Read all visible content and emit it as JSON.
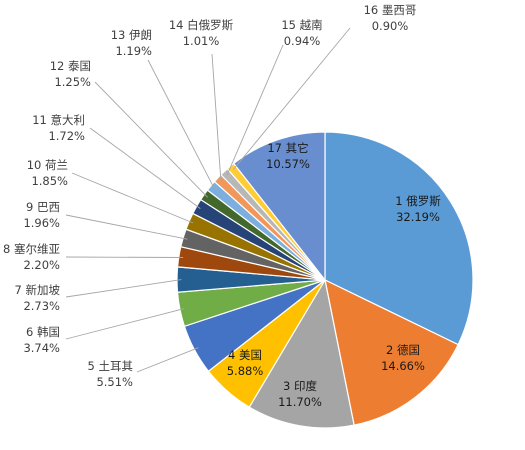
{
  "chart_data": {
    "type": "pie",
    "title": "",
    "slices": [
      {
        "rank": "1",
        "name": "俄罗斯",
        "value": 32.19,
        "display": "32.19%",
        "color": "#5b9bd5"
      },
      {
        "rank": "2",
        "name": "德国",
        "value": 14.66,
        "display": "14.66%",
        "color": "#ed7d31"
      },
      {
        "rank": "3",
        "name": "印度",
        "value": 11.7,
        "display": "11.70%",
        "color": "#a5a5a5"
      },
      {
        "rank": "4",
        "name": "美国",
        "value": 5.88,
        "display": "5.88%",
        "color": "#ffc000"
      },
      {
        "rank": "5",
        "name": "土耳其",
        "value": 5.51,
        "display": "5.51%",
        "color": "#4472c4"
      },
      {
        "rank": "6",
        "name": "韩国",
        "value": 3.74,
        "display": "3.74%",
        "color": "#70ad47"
      },
      {
        "rank": "7",
        "name": "新加坡",
        "value": 2.73,
        "display": "2.73%",
        "color": "#255e91"
      },
      {
        "rank": "8",
        "name": "塞尔维亚",
        "value": 2.2,
        "display": "2.20%",
        "color": "#9e480e"
      },
      {
        "rank": "9",
        "name": "巴西",
        "value": 1.96,
        "display": "1.96%",
        "color": "#636363"
      },
      {
        "rank": "10",
        "name": "荷兰",
        "value": 1.85,
        "display": "1.85%",
        "color": "#997300"
      },
      {
        "rank": "11",
        "name": "意大利",
        "value": 1.72,
        "display": "1.72%",
        "color": "#264478"
      },
      {
        "rank": "12",
        "name": "泰国",
        "value": 1.25,
        "display": "1.25%",
        "color": "#43682b"
      },
      {
        "rank": "13",
        "name": "伊朗",
        "value": 1.19,
        "display": "1.19%",
        "color": "#7cafdd"
      },
      {
        "rank": "14",
        "name": "白俄罗斯",
        "value": 1.01,
        "display": "1.01%",
        "color": "#f1975a"
      },
      {
        "rank": "15",
        "name": "越南",
        "value": 0.94,
        "display": "0.94%",
        "color": "#b7b7b7"
      },
      {
        "rank": "16",
        "name": "墨西哥",
        "value": 0.9,
        "display": "0.90%",
        "color": "#ffcd33"
      },
      {
        "rank": "17",
        "name": "其它",
        "value": 10.57,
        "display": "10.57%",
        "color": "#698ed0"
      }
    ],
    "legend": "none"
  }
}
